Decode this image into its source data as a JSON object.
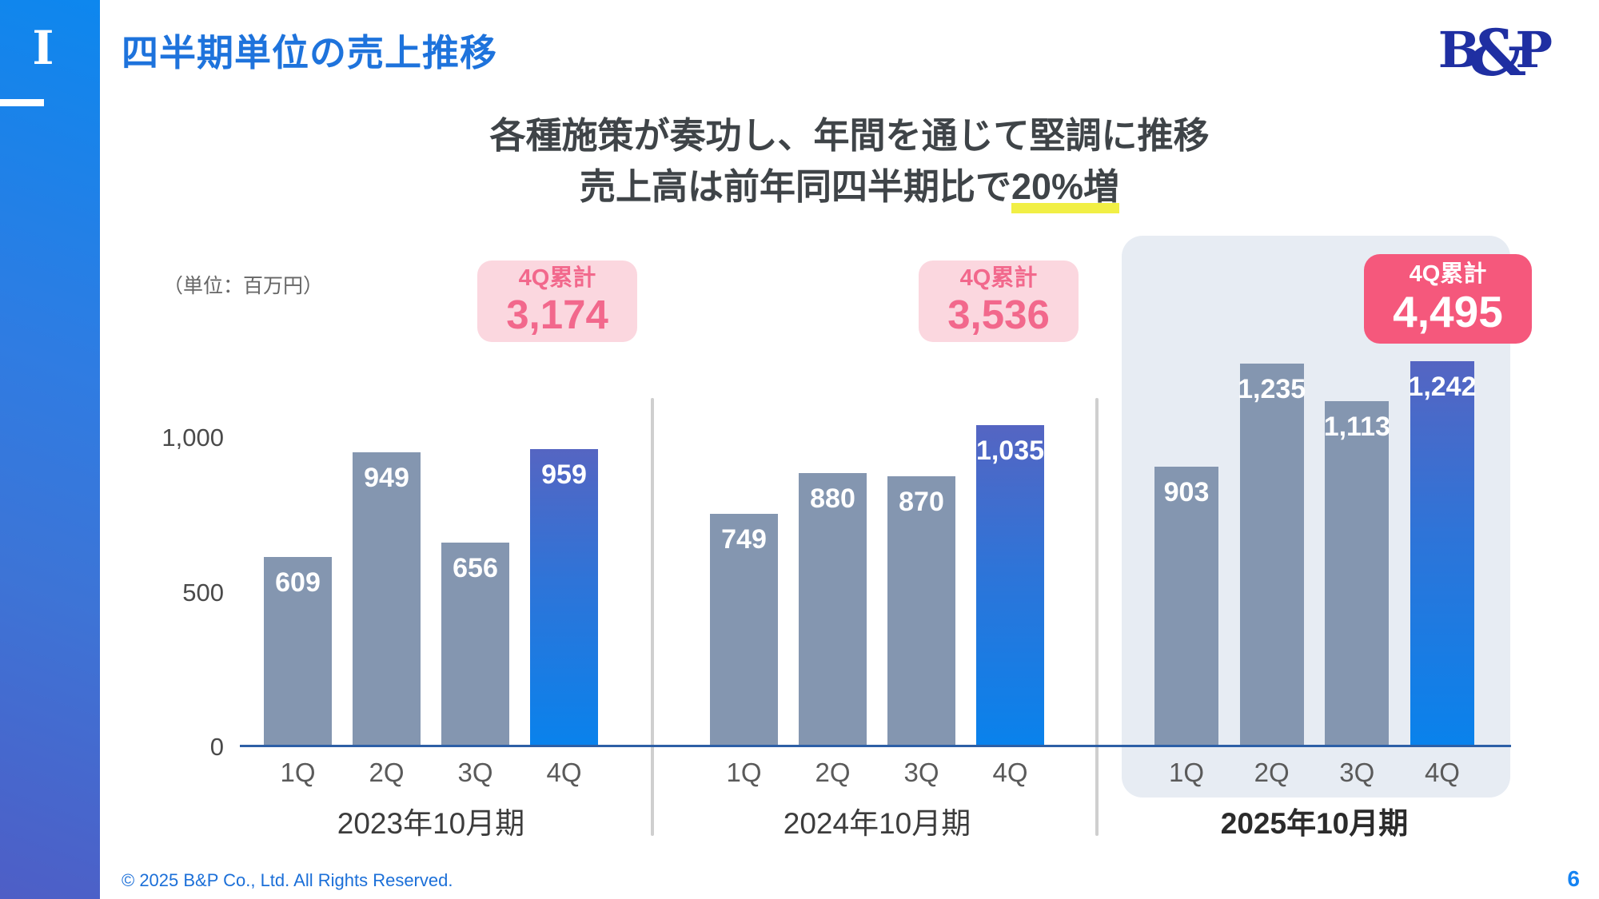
{
  "sidebar": {
    "section_marker": "I"
  },
  "header": {
    "title": "四半期単位の売上推移",
    "logo": {
      "b": "B",
      "amp": "&",
      "p": "P"
    }
  },
  "headline": {
    "line1": "各種施策が奏功し、年間を通じて堅調に推移",
    "line2_prefix": "売上高は前年同四半期比で",
    "line2_highlight": "20%増"
  },
  "unit_note": "（単位：百万円）",
  "chart_data": {
    "type": "bar",
    "title": "四半期単位の売上推移",
    "unit": "百万円",
    "ylim": [
      0,
      1300
    ],
    "grid": false,
    "y_ticks": [
      {
        "label": "1,000",
        "value": 1000
      },
      {
        "label": "500",
        "value": 500
      },
      {
        "label": "0",
        "value": 0
      }
    ],
    "quarters": [
      "1Q",
      "2Q",
      "3Q",
      "4Q"
    ],
    "groups": [
      {
        "label": "2023年10月期",
        "cumulative_badge": {
          "title": "4Q累計",
          "value": "3,174"
        },
        "values": [
          609,
          949,
          656,
          959
        ],
        "value_labels": [
          "609",
          "949",
          "656",
          "959"
        ],
        "highlighted": false
      },
      {
        "label": "2024年10月期",
        "cumulative_badge": {
          "title": "4Q累計",
          "value": "3,536"
        },
        "values": [
          749,
          880,
          870,
          1035
        ],
        "value_labels": [
          "749",
          "880",
          "870",
          "1,035"
        ],
        "highlighted": false
      },
      {
        "label": "2025年10月期",
        "cumulative_badge": {
          "title": "4Q累計",
          "value": "4,495"
        },
        "values": [
          903,
          1235,
          1113,
          1242
        ],
        "value_labels": [
          "903",
          "1,235",
          "1,113",
          "1,242"
        ],
        "highlighted": true
      }
    ],
    "colors": {
      "bar_default": "#8496B0",
      "bar_4q_gradient_top": "#5565C2",
      "bar_4q_gradient_bottom": "#0982EC",
      "badge_bg": "#FBD7DF",
      "badge_text": "#F2688C",
      "badge_highlight_bg": "#F5587C",
      "badge_highlight_text": "#FFFFFF",
      "highlight_panel_bg": "#E7ECF3",
      "underline_yellow": "#F1EF45",
      "title_blue": "#1E73DC"
    }
  },
  "footer": {
    "copyright": "© 2025 B&P Co., Ltd. All Rights Reserved.",
    "page_number": "6"
  }
}
